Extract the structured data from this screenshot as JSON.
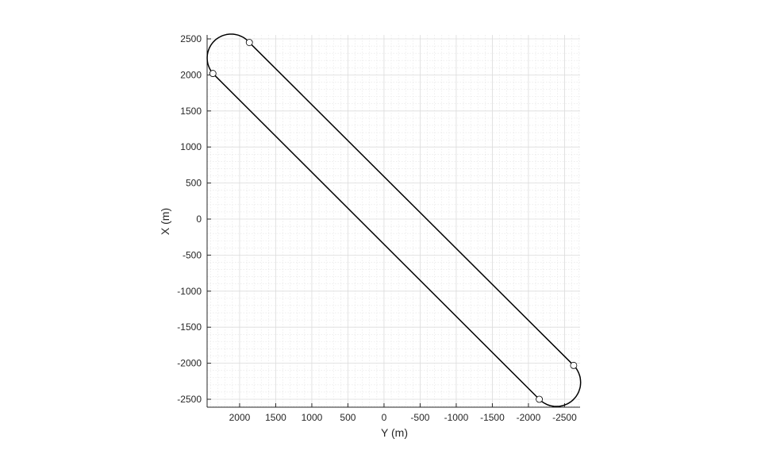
{
  "chart_data": {
    "type": "line",
    "xlabel": "Y (m)",
    "ylabel": "X (m)",
    "x_reversed": true,
    "xlim": [
      2450,
      -2715
    ],
    "ylim": [
      -2610,
      2555
    ],
    "xticks": [
      2000,
      1500,
      1000,
      500,
      0,
      -500,
      -1000,
      -1500,
      -2000,
      -2500
    ],
    "yticks": [
      2500,
      2000,
      1500,
      1000,
      500,
      0,
      -500,
      -1000,
      -1500,
      -2000,
      -2500
    ],
    "grid": {
      "major": true,
      "minor": true,
      "major_step": 500,
      "minor_step": 100
    },
    "legend": "none",
    "line_color": "#000000",
    "waypoints": [
      {
        "y_m": 1865,
        "x_m": 2450
      },
      {
        "y_m": -2626,
        "x_m": -2030
      },
      {
        "y_m": -2150,
        "x_m": -2500
      },
      {
        "y_m": 2370,
        "x_m": 2020
      }
    ]
  }
}
